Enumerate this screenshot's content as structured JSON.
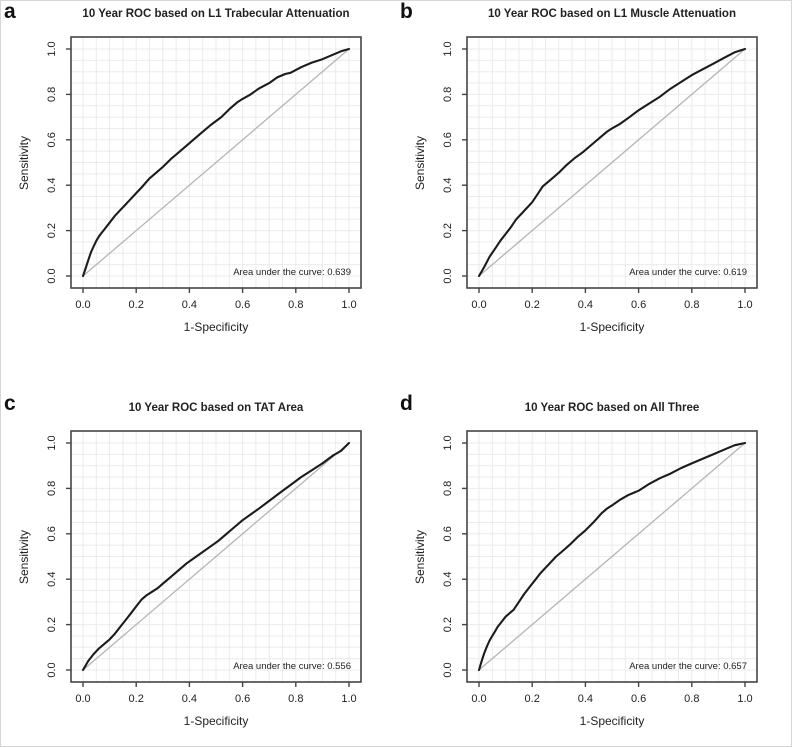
{
  "figure": {
    "background_color": "#ffffff",
    "outer_border_color": "#d6d6d6",
    "panel_labels": [
      "a",
      "b",
      "c",
      "d"
    ]
  },
  "colors": {
    "roc_curve": "#1c1c1c",
    "diagonal_reference": "#b5b5b5",
    "grid": "#ebebeb",
    "plot_border": "#454545",
    "tick": "#454545"
  },
  "chart_data": [
    {
      "type": "line",
      "panel_label": "a",
      "title": "10 Year ROC based on L1 Trabecular Attenuation",
      "xlabel": "1-Specificity",
      "ylabel": "Sensitivity",
      "auc": 0.639,
      "auc_label": "Area under the curve: 0.639",
      "xlim": [
        0,
        1
      ],
      "ylim": [
        0,
        1
      ],
      "grid": true,
      "grid_step": 0.05,
      "diagonal_reference": true,
      "tick_values": [
        0,
        0.2,
        0.4,
        0.6,
        0.8,
        1
      ],
      "x_tick_labels": [
        "0.0",
        "0.2",
        "0.4",
        "0.6",
        "0.8",
        "1.0"
      ],
      "y_tick_labels": [
        "0.0",
        "0.2",
        "0.4",
        "0.6",
        "0.8",
        "1.0"
      ],
      "roc_points": [
        [
          0,
          0
        ],
        [
          0.01,
          0.035
        ],
        [
          0.02,
          0.07
        ],
        [
          0.03,
          0.105
        ],
        [
          0.04,
          0.13
        ],
        [
          0.05,
          0.155
        ],
        [
          0.06,
          0.175
        ],
        [
          0.07,
          0.19
        ],
        [
          0.08,
          0.205
        ],
        [
          0.1,
          0.235
        ],
        [
          0.12,
          0.265
        ],
        [
          0.14,
          0.29
        ],
        [
          0.16,
          0.315
        ],
        [
          0.18,
          0.34
        ],
        [
          0.2,
          0.365
        ],
        [
          0.22,
          0.39
        ],
        [
          0.25,
          0.43
        ],
        [
          0.28,
          0.46
        ],
        [
          0.3,
          0.48
        ],
        [
          0.33,
          0.515
        ],
        [
          0.36,
          0.545
        ],
        [
          0.4,
          0.585
        ],
        [
          0.44,
          0.625
        ],
        [
          0.48,
          0.665
        ],
        [
          0.52,
          0.7
        ],
        [
          0.55,
          0.735
        ],
        [
          0.58,
          0.765
        ],
        [
          0.6,
          0.78
        ],
        [
          0.63,
          0.8
        ],
        [
          0.66,
          0.825
        ],
        [
          0.7,
          0.85
        ],
        [
          0.73,
          0.875
        ],
        [
          0.76,
          0.89
        ],
        [
          0.78,
          0.895
        ],
        [
          0.82,
          0.92
        ],
        [
          0.86,
          0.94
        ],
        [
          0.9,
          0.955
        ],
        [
          0.94,
          0.975
        ],
        [
          0.97,
          0.99
        ],
        [
          1,
          1
        ]
      ]
    },
    {
      "type": "line",
      "panel_label": "b",
      "title": "10 Year ROC based on L1 Muscle Attenuation",
      "xlabel": "1-Specificity",
      "ylabel": "Sensitivity",
      "auc": 0.619,
      "auc_label": "Area under the curve: 0.619",
      "xlim": [
        0,
        1
      ],
      "ylim": [
        0,
        1
      ],
      "grid": true,
      "grid_step": 0.05,
      "diagonal_reference": true,
      "tick_values": [
        0,
        0.2,
        0.4,
        0.6,
        0.8,
        1
      ],
      "x_tick_labels": [
        "0.0",
        "0.2",
        "0.4",
        "0.6",
        "0.8",
        "1.0"
      ],
      "y_tick_labels": [
        "0.0",
        "0.2",
        "0.4",
        "0.6",
        "0.8",
        "1.0"
      ],
      "roc_points": [
        [
          0,
          0
        ],
        [
          0.02,
          0.04
        ],
        [
          0.04,
          0.085
        ],
        [
          0.06,
          0.12
        ],
        [
          0.08,
          0.155
        ],
        [
          0.1,
          0.185
        ],
        [
          0.12,
          0.215
        ],
        [
          0.14,
          0.25
        ],
        [
          0.16,
          0.275
        ],
        [
          0.18,
          0.3
        ],
        [
          0.2,
          0.325
        ],
        [
          0.22,
          0.36
        ],
        [
          0.24,
          0.395
        ],
        [
          0.26,
          0.415
        ],
        [
          0.28,
          0.435
        ],
        [
          0.3,
          0.455
        ],
        [
          0.33,
          0.49
        ],
        [
          0.36,
          0.52
        ],
        [
          0.39,
          0.545
        ],
        [
          0.42,
          0.575
        ],
        [
          0.45,
          0.605
        ],
        [
          0.48,
          0.635
        ],
        [
          0.5,
          0.65
        ],
        [
          0.53,
          0.67
        ],
        [
          0.56,
          0.695
        ],
        [
          0.6,
          0.73
        ],
        [
          0.64,
          0.76
        ],
        [
          0.68,
          0.79
        ],
        [
          0.72,
          0.825
        ],
        [
          0.76,
          0.855
        ],
        [
          0.8,
          0.885
        ],
        [
          0.84,
          0.91
        ],
        [
          0.88,
          0.935
        ],
        [
          0.92,
          0.96
        ],
        [
          0.96,
          0.985
        ],
        [
          1,
          1
        ]
      ]
    },
    {
      "type": "line",
      "panel_label": "c",
      "title": "10 Year ROC based on TAT Area",
      "xlabel": "1-Specificity",
      "ylabel": "Sensitivity",
      "auc": 0.556,
      "auc_label": "Area under the curve: 0.556",
      "xlim": [
        0,
        1
      ],
      "ylim": [
        0,
        1
      ],
      "grid": true,
      "grid_step": 0.05,
      "diagonal_reference": true,
      "tick_values": [
        0,
        0.2,
        0.4,
        0.6,
        0.8,
        1
      ],
      "x_tick_labels": [
        "0.0",
        "0.2",
        "0.4",
        "0.6",
        "0.8",
        "1.0"
      ],
      "y_tick_labels": [
        "0.0",
        "0.2",
        "0.4",
        "0.6",
        "0.8",
        "1.0"
      ],
      "roc_points": [
        [
          0,
          0
        ],
        [
          0.02,
          0.04
        ],
        [
          0.04,
          0.07
        ],
        [
          0.06,
          0.095
        ],
        [
          0.08,
          0.115
        ],
        [
          0.1,
          0.135
        ],
        [
          0.12,
          0.16
        ],
        [
          0.14,
          0.19
        ],
        [
          0.16,
          0.22
        ],
        [
          0.18,
          0.25
        ],
        [
          0.2,
          0.28
        ],
        [
          0.22,
          0.31
        ],
        [
          0.24,
          0.33
        ],
        [
          0.26,
          0.345
        ],
        [
          0.28,
          0.36
        ],
        [
          0.3,
          0.38
        ],
        [
          0.33,
          0.41
        ],
        [
          0.36,
          0.44
        ],
        [
          0.39,
          0.47
        ],
        [
          0.42,
          0.495
        ],
        [
          0.45,
          0.52
        ],
        [
          0.48,
          0.545
        ],
        [
          0.51,
          0.57
        ],
        [
          0.54,
          0.6
        ],
        [
          0.57,
          0.63
        ],
        [
          0.6,
          0.66
        ],
        [
          0.63,
          0.685
        ],
        [
          0.66,
          0.71
        ],
        [
          0.7,
          0.745
        ],
        [
          0.74,
          0.78
        ],
        [
          0.78,
          0.815
        ],
        [
          0.82,
          0.85
        ],
        [
          0.86,
          0.88
        ],
        [
          0.9,
          0.91
        ],
        [
          0.94,
          0.945
        ],
        [
          0.97,
          0.965
        ],
        [
          1,
          1
        ]
      ]
    },
    {
      "type": "line",
      "panel_label": "d",
      "title": "10 Year ROC based on All Three",
      "xlabel": "1-Specificity",
      "ylabel": "Sensitivity",
      "auc": 0.657,
      "auc_label": "Area under the curve: 0.657",
      "xlim": [
        0,
        1
      ],
      "ylim": [
        0,
        1
      ],
      "grid": true,
      "grid_step": 0.05,
      "diagonal_reference": true,
      "tick_values": [
        0,
        0.2,
        0.4,
        0.6,
        0.8,
        1
      ],
      "x_tick_labels": [
        "0.0",
        "0.2",
        "0.4",
        "0.6",
        "0.8",
        "1.0"
      ],
      "y_tick_labels": [
        "0.0",
        "0.2",
        "0.4",
        "0.6",
        "0.8",
        "1.0"
      ],
      "roc_points": [
        [
          0,
          0
        ],
        [
          0.01,
          0.04
        ],
        [
          0.02,
          0.075
        ],
        [
          0.03,
          0.105
        ],
        [
          0.04,
          0.13
        ],
        [
          0.05,
          0.15
        ],
        [
          0.06,
          0.17
        ],
        [
          0.07,
          0.19
        ],
        [
          0.08,
          0.205
        ],
        [
          0.1,
          0.235
        ],
        [
          0.12,
          0.255
        ],
        [
          0.13,
          0.265
        ],
        [
          0.15,
          0.3
        ],
        [
          0.17,
          0.335
        ],
        [
          0.19,
          0.365
        ],
        [
          0.21,
          0.395
        ],
        [
          0.23,
          0.425
        ],
        [
          0.25,
          0.45
        ],
        [
          0.27,
          0.475
        ],
        [
          0.29,
          0.5
        ],
        [
          0.31,
          0.52
        ],
        [
          0.34,
          0.55
        ],
        [
          0.37,
          0.585
        ],
        [
          0.4,
          0.615
        ],
        [
          0.43,
          0.65
        ],
        [
          0.46,
          0.69
        ],
        [
          0.48,
          0.71
        ],
        [
          0.5,
          0.725
        ],
        [
          0.53,
          0.75
        ],
        [
          0.56,
          0.77
        ],
        [
          0.6,
          0.79
        ],
        [
          0.64,
          0.82
        ],
        [
          0.68,
          0.845
        ],
        [
          0.72,
          0.865
        ],
        [
          0.76,
          0.89
        ],
        [
          0.8,
          0.91
        ],
        [
          0.84,
          0.93
        ],
        [
          0.88,
          0.95
        ],
        [
          0.92,
          0.97
        ],
        [
          0.96,
          0.99
        ],
        [
          1,
          1
        ]
      ]
    }
  ]
}
